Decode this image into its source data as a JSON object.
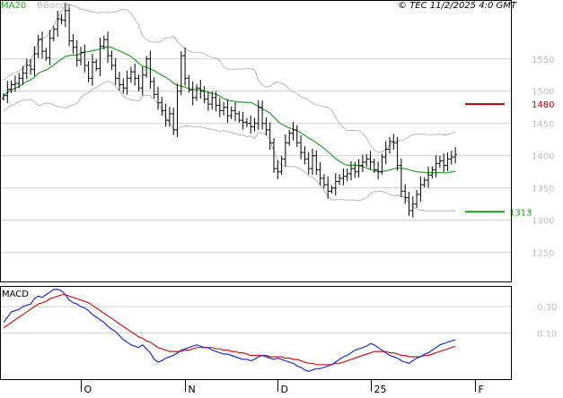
{
  "header": {
    "legend_ma": "MA20",
    "legend_bb": "BBands",
    "timestamp": "© TEC 11/2/2025 4:0 GMT"
  },
  "colors": {
    "price_bars": "#000000",
    "ma20": "#2aa02a",
    "bbands": "#b8b8b8",
    "macd_line": "#1f2fd0",
    "signal_line": "#d01818",
    "resistance": "#c00000",
    "support": "#1a9a1a",
    "grid": "#cfcfcf"
  },
  "chart_data": [
    {
      "type": "ohlc",
      "ylim": [
        1205,
        1640
      ],
      "grid": true,
      "y_ticks": [
        1250,
        1300,
        1350,
        1400,
        1450,
        1500,
        1550
      ],
      "y_tick_labels": [
        "1250",
        "1300",
        "1350",
        "1400",
        "1450",
        "1500",
        "1550"
      ],
      "x_ticks": [
        {
          "label": "O",
          "index": 20
        },
        {
          "label": "N",
          "index": 47
        },
        {
          "label": "D",
          "index": 71
        },
        {
          "label": "25",
          "index": 95
        },
        {
          "label": "F",
          "index": 122
        }
      ],
      "closes": [
        1493,
        1503,
        1510,
        1512,
        1520,
        1528,
        1540,
        1534,
        1558,
        1580,
        1562,
        1552,
        1582,
        1596,
        1612,
        1610,
        1625,
        1578,
        1568,
        1548,
        1560,
        1540,
        1520,
        1545,
        1535,
        1570,
        1580,
        1555,
        1540,
        1520,
        1510,
        1505,
        1520,
        1530,
        1520,
        1505,
        1525,
        1550,
        1515,
        1495,
        1482,
        1470,
        1455,
        1465,
        1440,
        1500,
        1555,
        1520,
        1502,
        1490,
        1505,
        1500,
        1488,
        1480,
        1490,
        1478,
        1470,
        1475,
        1462,
        1470,
        1465,
        1455,
        1452,
        1450,
        1445,
        1450,
        1475,
        1450,
        1440,
        1420,
        1380,
        1375,
        1395,
        1420,
        1435,
        1440,
        1420,
        1405,
        1395,
        1380,
        1400,
        1378,
        1365,
        1355,
        1345,
        1350,
        1360,
        1365,
        1368,
        1372,
        1380,
        1375,
        1385,
        1390,
        1395,
        1390,
        1378,
        1375,
        1398,
        1410,
        1422,
        1420,
        1385,
        1345,
        1335,
        1315,
        1325,
        1340,
        1355,
        1362,
        1370,
        1378,
        1388,
        1392,
        1385,
        1395,
        1398,
        1402
      ],
      "support": 1313,
      "support_label": "1313",
      "resistance": 1480,
      "resistance_label": "1480"
    },
    {
      "type": "line",
      "title": "MACD",
      "ylim": [
        -25,
        45
      ],
      "y_ticks": [
        10,
        30
      ],
      "y_tick_labels": [
        "0.10",
        "0.30"
      ],
      "series": [
        {
          "name": "MACD",
          "values": [
            18,
            22,
            26,
            27,
            28,
            30,
            31,
            32,
            36,
            38,
            37,
            39,
            41,
            43,
            43,
            42,
            39,
            35,
            33,
            32,
            30,
            29,
            27,
            24,
            22,
            20,
            18,
            15,
            13,
            11,
            8,
            5,
            3,
            1,
            0,
            -1,
            1,
            -2,
            -5,
            -10,
            -12,
            -11,
            -9,
            -8,
            -7,
            -5,
            -3,
            -2,
            -1,
            0,
            1,
            0,
            -1,
            -1,
            -3,
            -4,
            -5,
            -6,
            -6,
            -7,
            -8,
            -9,
            -10,
            -10,
            -11,
            -10,
            -8,
            -7,
            -8,
            -9,
            -10,
            -9,
            -10,
            -11,
            -12,
            -13,
            -15,
            -16,
            -18,
            -19,
            -18,
            -17,
            -17,
            -16,
            -15,
            -14,
            -12,
            -10,
            -8,
            -7,
            -5,
            -3,
            -2,
            -1,
            0,
            2,
            1,
            -1,
            -3,
            -5,
            -7,
            -8,
            -9,
            -11,
            -12,
            -13,
            -11,
            -9,
            -8,
            -6,
            -5,
            -3,
            -1,
            1,
            2,
            3,
            4,
            5
          ]
        },
        {
          "name": "Signal",
          "values": [
            14,
            16,
            18,
            20,
            22,
            24,
            26,
            28,
            30,
            32,
            33,
            34,
            36,
            37,
            38,
            39,
            39,
            38,
            37,
            36,
            35,
            34,
            33,
            31,
            29,
            27,
            25,
            23,
            21,
            19,
            17,
            15,
            13,
            11,
            9,
            7,
            6,
            4,
            3,
            1,
            -1,
            -2,
            -3,
            -4,
            -4,
            -4,
            -4,
            -3,
            -3,
            -2,
            -1,
            -1,
            -1,
            -1,
            -1,
            -2,
            -2,
            -3,
            -3,
            -4,
            -4,
            -5,
            -5,
            -6,
            -7,
            -7,
            -7,
            -7,
            -7,
            -8,
            -8,
            -8,
            -8,
            -9,
            -9,
            -10,
            -10,
            -11,
            -12,
            -13,
            -13,
            -14,
            -14,
            -14,
            -14,
            -14,
            -13,
            -13,
            -12,
            -11,
            -10,
            -9,
            -8,
            -7,
            -6,
            -5,
            -4,
            -4,
            -4,
            -4,
            -5,
            -5,
            -6,
            -7,
            -7,
            -8,
            -8,
            -8,
            -8,
            -7,
            -7,
            -6,
            -5,
            -4,
            -3,
            -2,
            -1,
            0
          ]
        }
      ]
    }
  ]
}
